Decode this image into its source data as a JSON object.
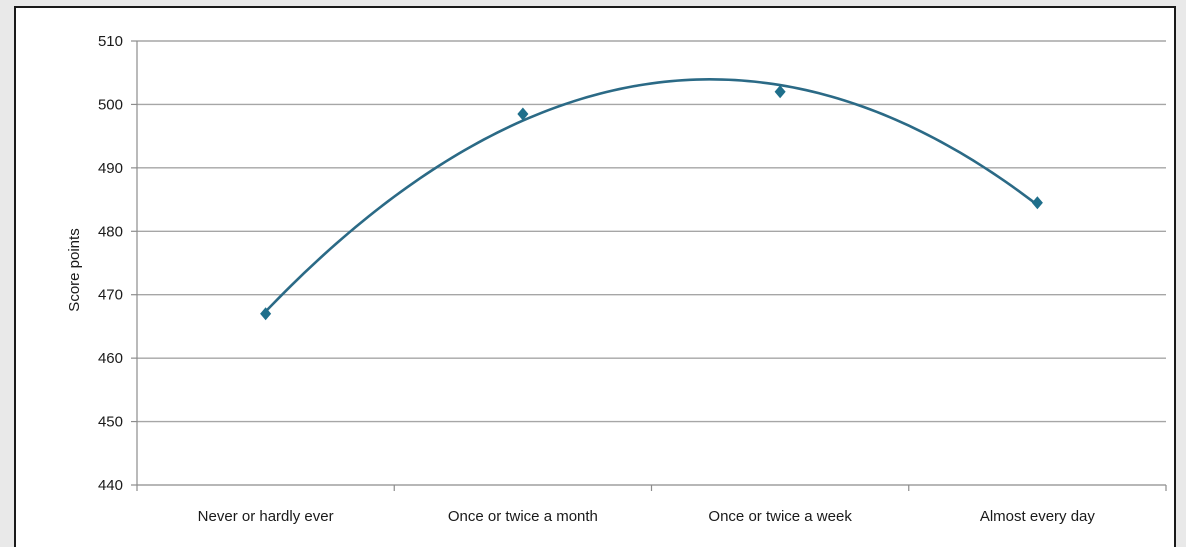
{
  "chart_data": {
    "type": "scatter",
    "title": "",
    "xlabel": "",
    "ylabel": "Score points",
    "categories": [
      "Never or hardly ever",
      "Once or twice a month",
      "Once or twice a week",
      "Almost every day"
    ],
    "values": [
      467,
      498.5,
      502,
      484.5
    ],
    "trendline": "polynomial-2",
    "ylim": [
      440,
      510
    ],
    "yticks": [
      440,
      450,
      460,
      470,
      480,
      490,
      500,
      510
    ],
    "grid": true,
    "legend": "none",
    "colors": {
      "marker": "#1f6f8b",
      "trendline": "#2b6a86",
      "grid": "#a6a6a6",
      "axis": "#8c8c8c"
    }
  }
}
